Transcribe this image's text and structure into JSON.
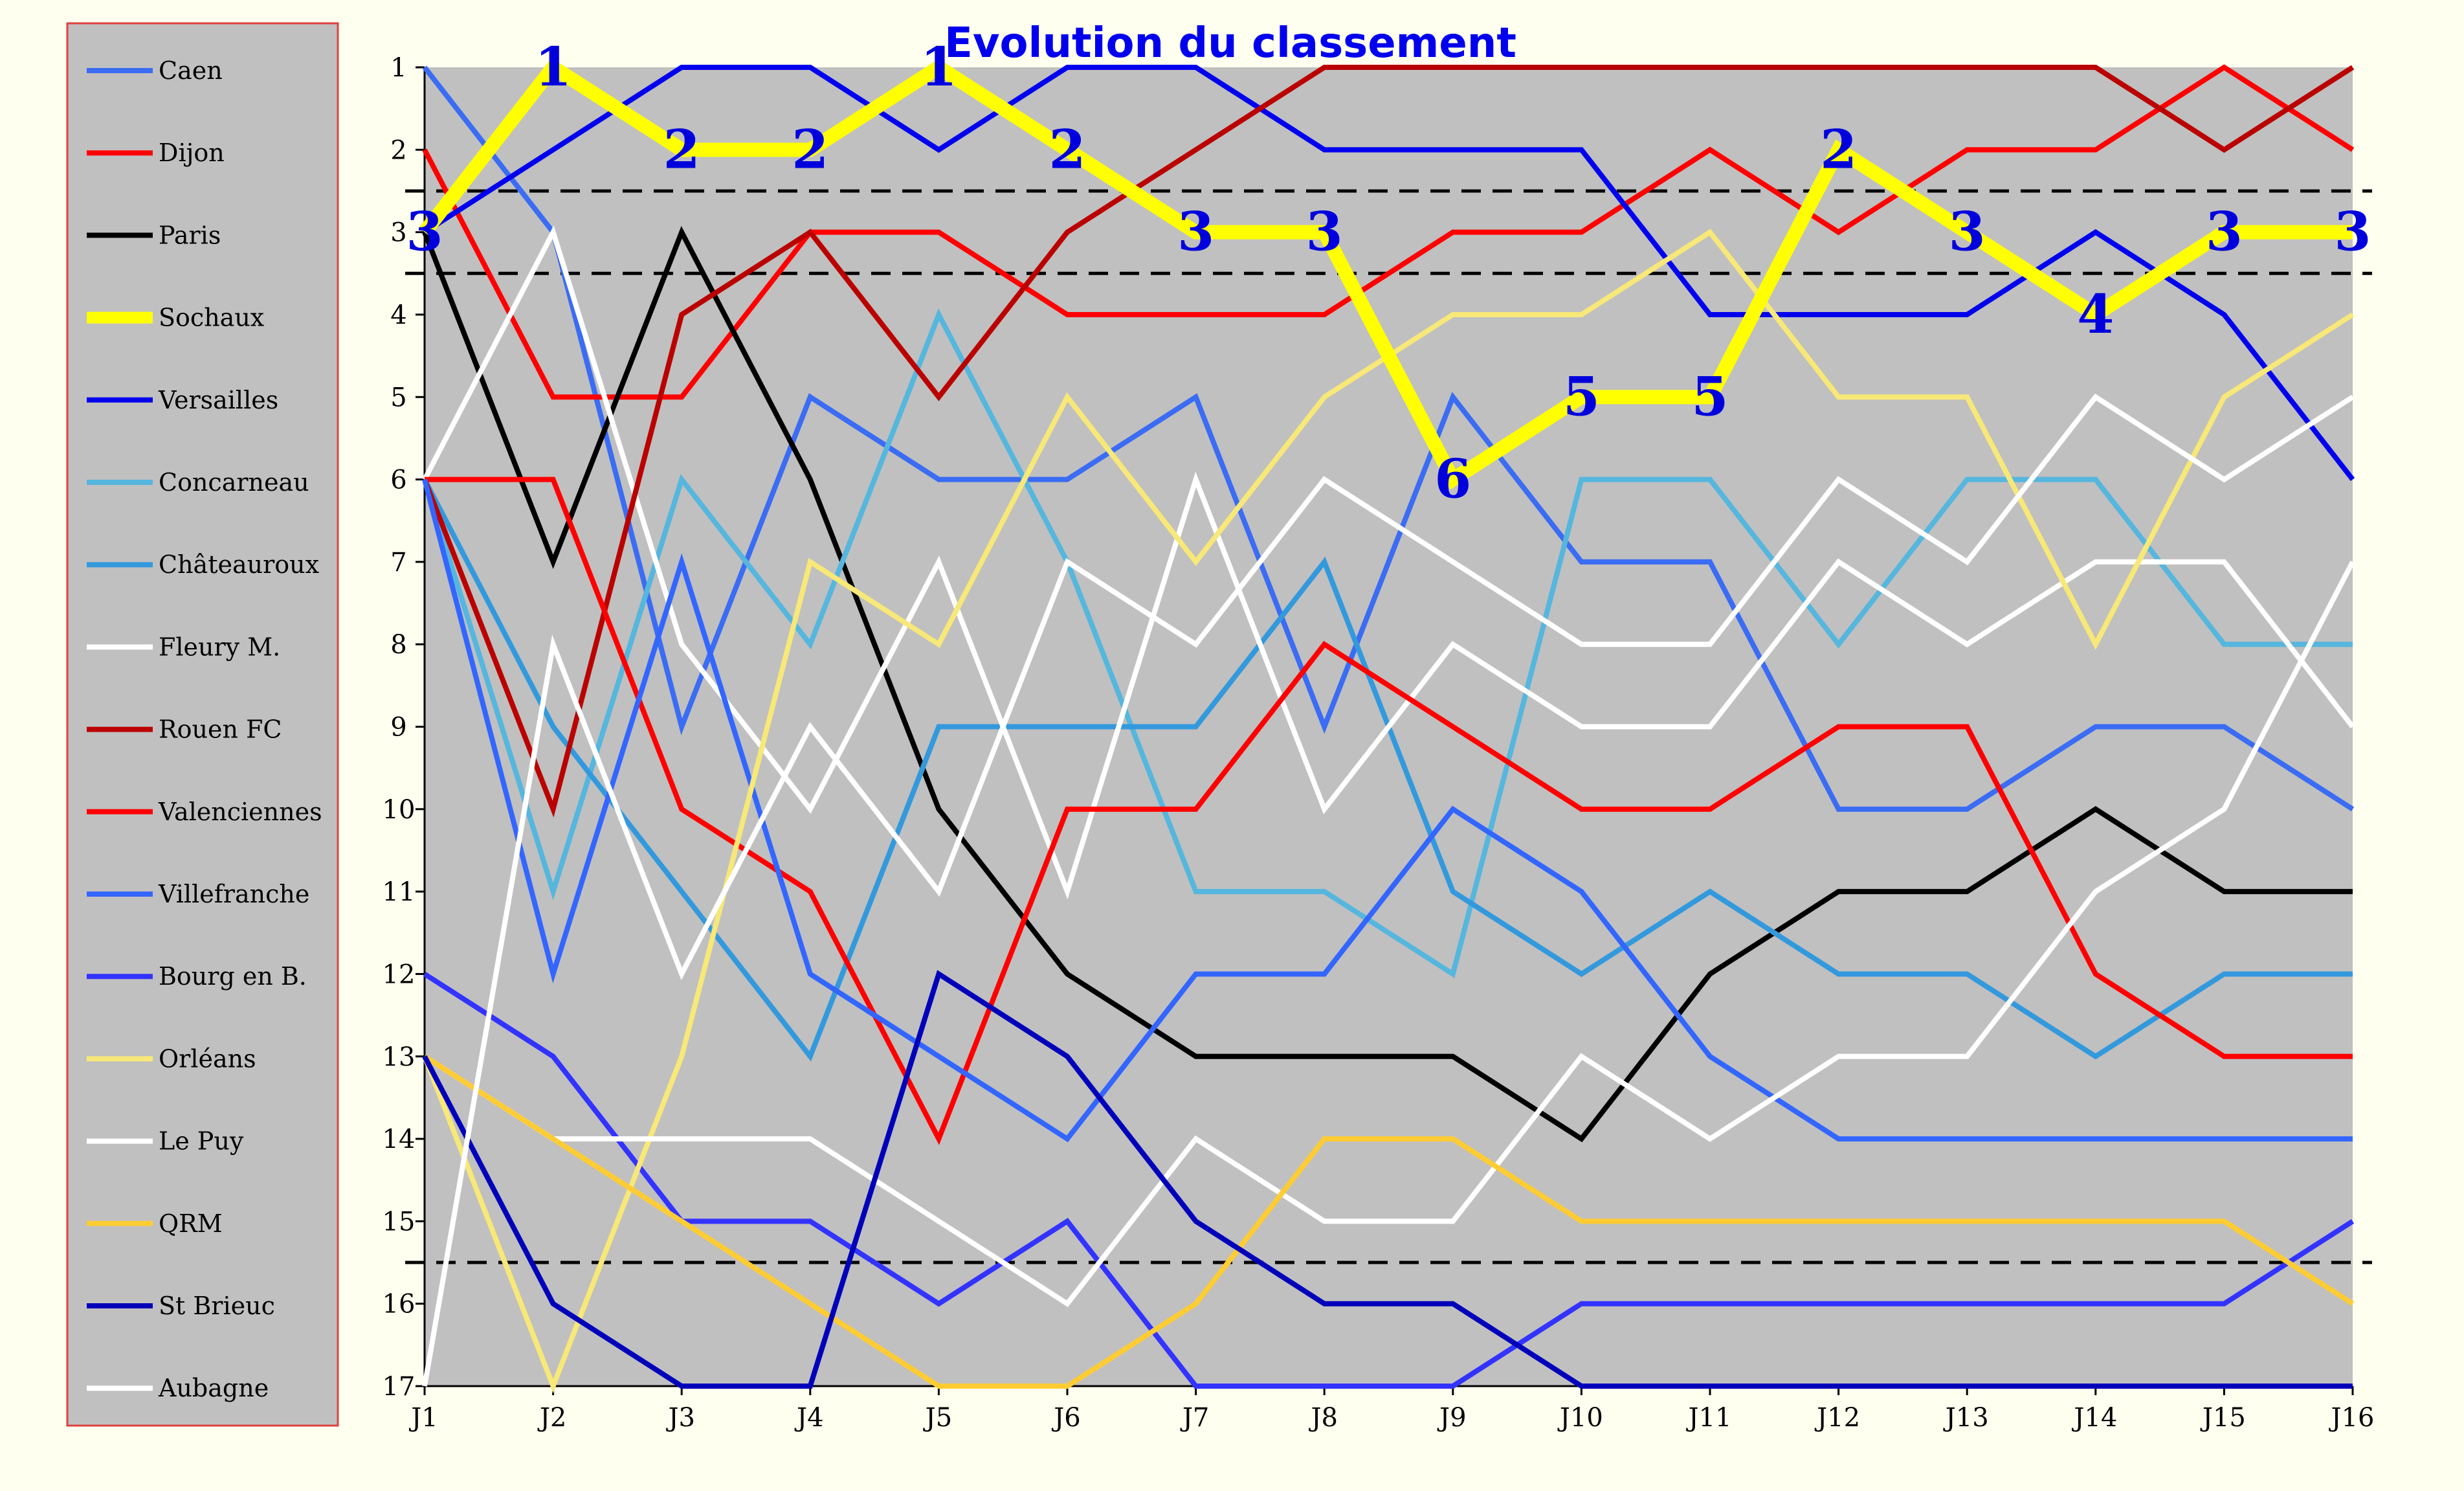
{
  "chart_data": {
    "type": "line",
    "title": "Evolution du classement",
    "xlabel": "",
    "ylabel": "",
    "x": [
      "J1",
      "J2",
      "J3",
      "J4",
      "J5",
      "J6",
      "J7",
      "J8",
      "J9",
      "J10",
      "J11",
      "J12",
      "J13",
      "J14",
      "J15",
      "J16"
    ],
    "y_ticks": [
      1,
      2,
      3,
      4,
      5,
      6,
      7,
      8,
      9,
      10,
      11,
      12,
      13,
      14,
      15,
      16,
      17
    ],
    "ylim": [
      17,
      1
    ],
    "y_inverted": true,
    "grid": false,
    "legend_position": "left",
    "reference_lines": [
      2.5,
      3.5,
      15.5
    ],
    "highlight_series": "Sochaux",
    "series": [
      {
        "name": "Caen",
        "color": "#3a6cf4",
        "values": [
          1,
          3,
          9,
          5,
          6,
          6,
          5,
          9,
          5,
          7,
          7,
          10,
          10,
          9,
          9,
          10
        ]
      },
      {
        "name": "Dijon",
        "color": "#ff0000",
        "values": [
          2,
          5,
          5,
          3,
          3,
          4,
          4,
          4,
          3,
          3,
          2,
          3,
          2,
          2,
          1,
          2
        ]
      },
      {
        "name": "Paris",
        "color": "#000000",
        "values": [
          3,
          7,
          3,
          6,
          10,
          12,
          13,
          13,
          13,
          14,
          12,
          11,
          11,
          10,
          11,
          11
        ]
      },
      {
        "name": "Sochaux",
        "color": "#ffff00",
        "values": [
          3,
          1,
          2,
          2,
          1,
          2,
          3,
          3,
          6,
          5,
          5,
          2,
          3,
          4,
          3,
          3
        ]
      },
      {
        "name": "Versailles",
        "color": "#0000ee",
        "values": [
          3,
          2,
          1,
          1,
          2,
          1,
          1,
          2,
          2,
          2,
          4,
          4,
          4,
          3,
          4,
          6
        ]
      },
      {
        "name": "Concarneau",
        "color": "#55b6de",
        "values": [
          6,
          11,
          6,
          8,
          4,
          7,
          11,
          11,
          12,
          6,
          6,
          8,
          6,
          6,
          8,
          8
        ]
      },
      {
        "name": "Châteauroux",
        "color": "#3399dd",
        "values": [
          6,
          9,
          11,
          13,
          9,
          9,
          9,
          7,
          11,
          12,
          11,
          12,
          12,
          13,
          12,
          12
        ]
      },
      {
        "name": "Fleury M.",
        "color": "#ffffff",
        "values": [
          6,
          3,
          8,
          10,
          7,
          11,
          6,
          10,
          8,
          9,
          9,
          7,
          8,
          7,
          7,
          9
        ]
      },
      {
        "name": "Rouen FC",
        "color": "#bb0000",
        "values": [
          6,
          10,
          4,
          3,
          5,
          3,
          2,
          1,
          1,
          1,
          1,
          1,
          1,
          1,
          2,
          1
        ]
      },
      {
        "name": "Valenciennes",
        "color": "#ff0000",
        "values": [
          6,
          6,
          10,
          11,
          14,
          10,
          10,
          8,
          9,
          10,
          10,
          9,
          9,
          12,
          13,
          13
        ]
      },
      {
        "name": "Villefranche",
        "color": "#3366ff",
        "values": [
          6,
          12,
          7,
          12,
          13,
          14,
          12,
          12,
          10,
          11,
          13,
          14,
          14,
          14,
          14,
          14
        ]
      },
      {
        "name": "Bourg en B.",
        "color": "#3333ff",
        "values": [
          12,
          13,
          15,
          15,
          16,
          15,
          17,
          17,
          17,
          16,
          16,
          16,
          16,
          16,
          16,
          15
        ]
      },
      {
        "name": "Orléans",
        "color": "#f7e878",
        "values": [
          13,
          17,
          13,
          7,
          8,
          5,
          7,
          5,
          4,
          4,
          3,
          5,
          5,
          8,
          5,
          4
        ]
      },
      {
        "name": "Le Puy",
        "color": "#ffffff",
        "values": [
          13,
          14,
          14,
          14,
          15,
          16,
          14,
          15,
          15,
          13,
          14,
          13,
          13,
          11,
          10,
          7
        ]
      },
      {
        "name": "QRM",
        "color": "#ffcc33",
        "values": [
          13,
          14,
          15,
          16,
          17,
          17,
          16,
          14,
          14,
          15,
          15,
          15,
          15,
          15,
          15,
          16
        ]
      },
      {
        "name": "St Brieuc",
        "color": "#0000bb",
        "values": [
          13,
          16,
          17,
          17,
          12,
          13,
          15,
          16,
          16,
          17,
          17,
          17,
          17,
          17,
          17,
          17
        ]
      },
      {
        "name": "Aubagne",
        "color": "#ffffff",
        "values": [
          17,
          8,
          12,
          9,
          11,
          7,
          8,
          6,
          7,
          8,
          8,
          6,
          7,
          5,
          6,
          5
        ]
      }
    ]
  }
}
